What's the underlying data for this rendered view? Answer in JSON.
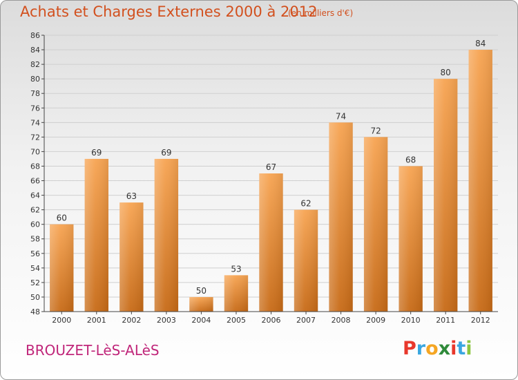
{
  "header": {
    "title": "Achats et Charges Externes 2000 à 2012",
    "subtitle": "(en milliers d'€)"
  },
  "footer": {
    "commune": "BROUZET-LèS-ALèS",
    "logo_letters": [
      "P",
      "r",
      "o",
      "x",
      "i",
      "t",
      "i"
    ],
    "logo_colors": [
      "#e8382c",
      "#3aa7e0",
      "#f5a623",
      "#2f8a3a",
      "#e8382c",
      "#3aa7e0",
      "#8cc63f"
    ]
  },
  "colors": {
    "title": "#d2501e",
    "commune": "#c0267a",
    "bar_top": "#f7a452",
    "bar_bottom": "#c76a16",
    "grid": "#cfcfcf",
    "axis": "#444444",
    "text": "#333333"
  },
  "chart_data": {
    "type": "bar",
    "categories": [
      "2000",
      "2001",
      "2002",
      "2003",
      "2004",
      "2005",
      "2006",
      "2007",
      "2008",
      "2009",
      "2010",
      "2011",
      "2012"
    ],
    "values": [
      60,
      69,
      63,
      69,
      50,
      53,
      67,
      62,
      74,
      72,
      68,
      80,
      84
    ],
    "title": "Achats et Charges Externes 2000 à 2012",
    "subtitle": "(en milliers d'€)",
    "xlabel": "",
    "ylabel": "",
    "ylim": [
      48,
      86
    ],
    "ytick_step": 2,
    "grid": true,
    "legend": "none",
    "data_labels": true
  }
}
